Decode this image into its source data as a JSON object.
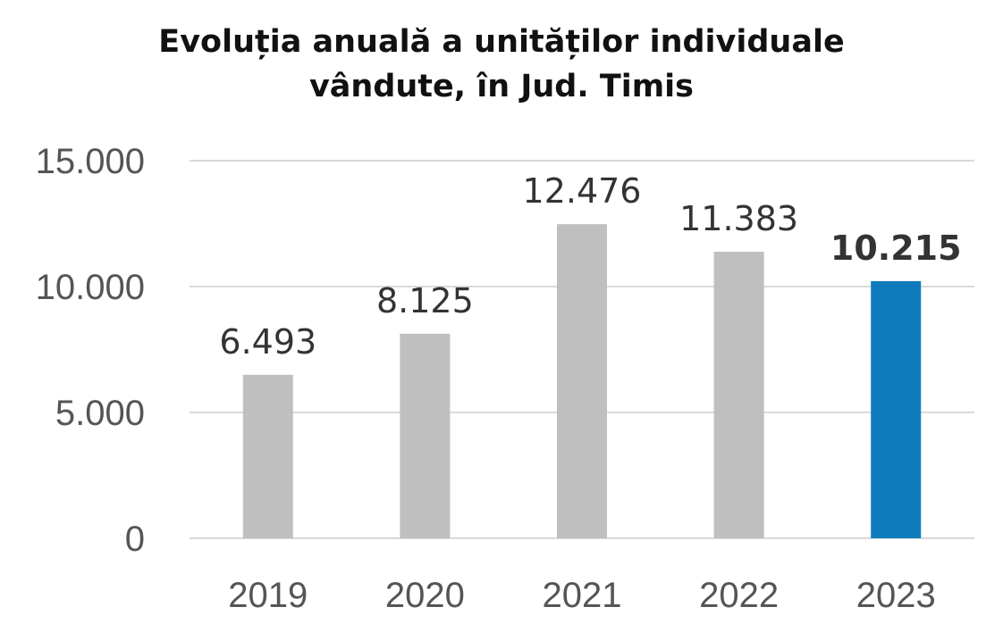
{
  "chart_data": {
    "type": "bar",
    "title_lines": [
      "Evoluția anuală a unităților individuale",
      "vândute, în Jud. Timis"
    ],
    "categories": [
      "2019",
      "2020",
      "2021",
      "2022",
      "2023"
    ],
    "values": [
      6493,
      8125,
      12476,
      11383,
      10215
    ],
    "value_labels": [
      "6.493",
      "8.125",
      "12.476",
      "11.383",
      "10.215"
    ],
    "highlight_index": 4,
    "y_ticks": [
      0,
      5000,
      10000,
      15000
    ],
    "y_tick_labels": [
      "0",
      "5.000",
      "10.000",
      "15.000"
    ],
    "ylim": [
      0,
      15000
    ],
    "grid": true,
    "colors": {
      "bar": "#bfbfbf",
      "highlight": "#0e7bbd",
      "grid": "#d9d9d9"
    }
  }
}
